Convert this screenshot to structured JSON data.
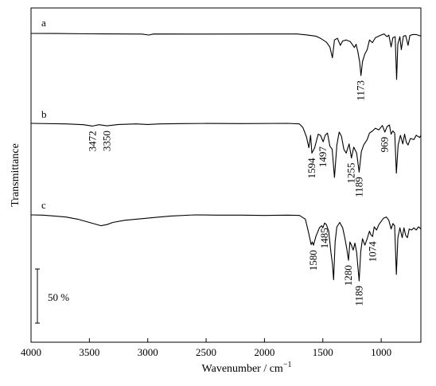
{
  "chart_data": {
    "type": "line",
    "xlabel": "Wavenumber / cm",
    "xlabel_sup": "−1",
    "ylabel": "Transmittance",
    "xlim": [
      4000,
      660
    ],
    "x_reversed": true,
    "x_ticks": [
      4000,
      3500,
      3000,
      2500,
      2000,
      1500,
      1000
    ],
    "x_tick_labels": [
      "4000",
      "3500",
      "3000",
      "2500",
      "2000",
      "1500",
      "1000"
    ],
    "scale_bar": {
      "label": "50 %",
      "value_percent": 50
    },
    "series": [
      {
        "name": "a",
        "points": [
          [
            4000,
            0
          ],
          [
            3800,
            0.2
          ],
          [
            3500,
            0.8
          ],
          [
            3200,
            1.0
          ],
          [
            3050,
            1.2
          ],
          [
            2990,
            3
          ],
          [
            2950,
            1
          ],
          [
            2500,
            1.2
          ],
          [
            2000,
            1.0
          ],
          [
            1720,
            1.0
          ],
          [
            1650,
            2.5
          ],
          [
            1560,
            5
          ],
          [
            1520,
            9
          ],
          [
            1470,
            16
          ],
          [
            1440,
            25
          ],
          [
            1418,
            45
          ],
          [
            1400,
            12
          ],
          [
            1375,
            9
          ],
          [
            1350,
            22
          ],
          [
            1330,
            14
          ],
          [
            1300,
            12
          ],
          [
            1265,
            15
          ],
          [
            1230,
            26
          ],
          [
            1215,
            20
          ],
          [
            1200,
            34
          ],
          [
            1185,
            52
          ],
          [
            1173,
            78
          ],
          [
            1160,
            52
          ],
          [
            1140,
            38
          ],
          [
            1120,
            30
          ],
          [
            1100,
            12
          ],
          [
            1075,
            17
          ],
          [
            1050,
            8
          ],
          [
            1000,
            3
          ],
          [
            975,
            1
          ],
          [
            950,
            6
          ],
          [
            935,
            3
          ],
          [
            915,
            25
          ],
          [
            900,
            8
          ],
          [
            880,
            6
          ],
          [
            868,
            85
          ],
          [
            858,
            20
          ],
          [
            840,
            6
          ],
          [
            828,
            30
          ],
          [
            810,
            5
          ],
          [
            790,
            4
          ],
          [
            770,
            22
          ],
          [
            755,
            4
          ],
          [
            730,
            2
          ],
          [
            700,
            2
          ],
          [
            660,
            5
          ]
        ],
        "annotations": [
          {
            "wavenumber": 1173,
            "label": "1173"
          }
        ]
      },
      {
        "name": "b",
        "points": [
          [
            4000,
            0
          ],
          [
            3700,
            1
          ],
          [
            3550,
            2.5
          ],
          [
            3472,
            5
          ],
          [
            3420,
            2.5
          ],
          [
            3350,
            4.5
          ],
          [
            3250,
            2
          ],
          [
            3100,
            1
          ],
          [
            3000,
            2
          ],
          [
            2900,
            1
          ],
          [
            2700,
            0.5
          ],
          [
            2500,
            0.2
          ],
          [
            2200,
            0.5
          ],
          [
            1800,
            0
          ],
          [
            1700,
            1
          ],
          [
            1670,
            8
          ],
          [
            1640,
            25
          ],
          [
            1620,
            45
          ],
          [
            1605,
            22
          ],
          [
            1594,
            55
          ],
          [
            1570,
            45
          ],
          [
            1540,
            20
          ],
          [
            1520,
            22
          ],
          [
            1497,
            34
          ],
          [
            1480,
            22
          ],
          [
            1460,
            18
          ],
          [
            1440,
            42
          ],
          [
            1420,
            48
          ],
          [
            1400,
            100
          ],
          [
            1380,
            40
          ],
          [
            1360,
            16
          ],
          [
            1340,
            24
          ],
          [
            1320,
            48
          ],
          [
            1300,
            55
          ],
          [
            1275,
            38
          ],
          [
            1255,
            64
          ],
          [
            1235,
            44
          ],
          [
            1210,
            55
          ],
          [
            1189,
            90
          ],
          [
            1170,
            52
          ],
          [
            1150,
            40
          ],
          [
            1120,
            30
          ],
          [
            1100,
            18
          ],
          [
            1074,
            14
          ],
          [
            1050,
            9
          ],
          [
            1020,
            12
          ],
          [
            990,
            4
          ],
          [
            969,
            16
          ],
          [
            950,
            6
          ],
          [
            930,
            3
          ],
          [
            915,
            20
          ],
          [
            900,
            14
          ],
          [
            884,
            18
          ],
          [
            870,
            92
          ],
          [
            855,
            40
          ],
          [
            835,
            22
          ],
          [
            815,
            38
          ],
          [
            800,
            20
          ],
          [
            785,
            35
          ],
          [
            770,
            40
          ],
          [
            750,
            28
          ],
          [
            720,
            30
          ],
          [
            700,
            22
          ],
          [
            670,
            26
          ],
          [
            660,
            22
          ]
        ],
        "annotations": [
          {
            "wavenumber": 3472,
            "label": "3472"
          },
          {
            "wavenumber": 3350,
            "label": "3350"
          },
          {
            "wavenumber": 1594,
            "label": "1594"
          },
          {
            "wavenumber": 1497,
            "label": "1497"
          },
          {
            "wavenumber": 1255,
            "label": "1255"
          },
          {
            "wavenumber": 1189,
            "label": "1189"
          },
          {
            "wavenumber": 969,
            "label": "969"
          }
        ]
      },
      {
        "name": "c",
        "points": [
          [
            4000,
            0
          ],
          [
            3900,
            0.5
          ],
          [
            3800,
            2
          ],
          [
            3700,
            4
          ],
          [
            3600,
            8
          ],
          [
            3500,
            14
          ],
          [
            3400,
            20
          ],
          [
            3350,
            18
          ],
          [
            3300,
            14
          ],
          [
            3200,
            10
          ],
          [
            3100,
            8
          ],
          [
            3000,
            6
          ],
          [
            2900,
            4
          ],
          [
            2800,
            2
          ],
          [
            2600,
            0
          ],
          [
            2400,
            0.5
          ],
          [
            2200,
            0.5
          ],
          [
            2000,
            1
          ],
          [
            1800,
            0.5
          ],
          [
            1700,
            1
          ],
          [
            1650,
            8
          ],
          [
            1625,
            30
          ],
          [
            1600,
            55
          ],
          [
            1590,
            50
          ],
          [
            1580,
            56
          ],
          [
            1560,
            40
          ],
          [
            1530,
            24
          ],
          [
            1510,
            20
          ],
          [
            1500,
            24
          ],
          [
            1485,
            15
          ],
          [
            1470,
            18
          ],
          [
            1450,
            30
          ],
          [
            1430,
            70
          ],
          [
            1418,
            90
          ],
          [
            1408,
            120
          ],
          [
            1395,
            50
          ],
          [
            1380,
            22
          ],
          [
            1355,
            14
          ],
          [
            1330,
            24
          ],
          [
            1310,
            44
          ],
          [
            1295,
            62
          ],
          [
            1280,
            84
          ],
          [
            1268,
            50
          ],
          [
            1255,
            56
          ],
          [
            1240,
            65
          ],
          [
            1225,
            52
          ],
          [
            1210,
            70
          ],
          [
            1189,
            122
          ],
          [
            1175,
            68
          ],
          [
            1160,
            44
          ],
          [
            1140,
            56
          ],
          [
            1120,
            44
          ],
          [
            1100,
            30
          ],
          [
            1090,
            36
          ],
          [
            1074,
            40
          ],
          [
            1060,
            22
          ],
          [
            1040,
            28
          ],
          [
            1020,
            18
          ],
          [
            1000,
            12
          ],
          [
            980,
            6
          ],
          [
            955,
            4
          ],
          [
            935,
            10
          ],
          [
            915,
            26
          ],
          [
            900,
            16
          ],
          [
            885,
            20
          ],
          [
            870,
            110
          ],
          [
            857,
            42
          ],
          [
            840,
            24
          ],
          [
            820,
            42
          ],
          [
            805,
            24
          ],
          [
            790,
            38
          ],
          [
            775,
            42
          ],
          [
            760,
            26
          ],
          [
            740,
            28
          ],
          [
            720,
            24
          ],
          [
            700,
            28
          ],
          [
            680,
            22
          ],
          [
            660,
            26
          ]
        ],
        "annotations": [
          {
            "wavenumber": 1580,
            "label": "1580"
          },
          {
            "wavenumber": 1485,
            "label": "1485"
          },
          {
            "wavenumber": 1280,
            "label": "1280"
          },
          {
            "wavenumber": 1189,
            "label": "1189"
          },
          {
            "wavenumber": 1074,
            "label": "1074"
          }
        ]
      }
    ],
    "grid": false,
    "legend": "none"
  }
}
